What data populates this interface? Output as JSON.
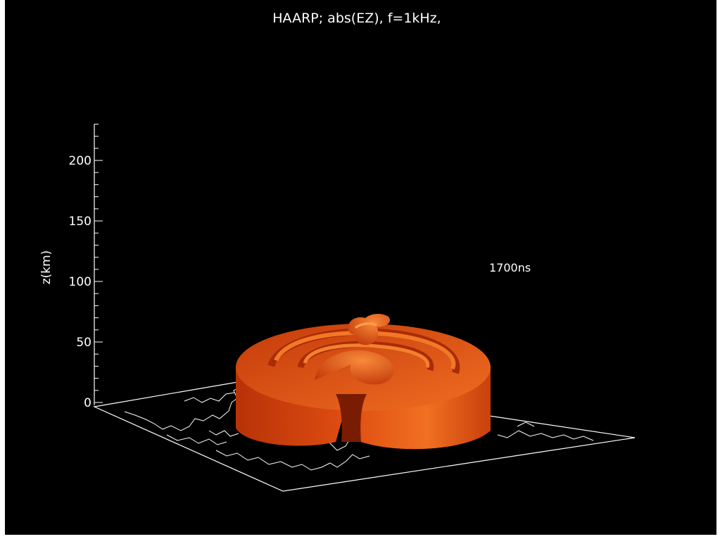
{
  "chart_data": {
    "type": "3d-isosurface",
    "title": "HAARP; abs(EZ), f=1kHz,",
    "zlabel": "z(km)",
    "zlim": [
      0,
      230
    ],
    "z_ticks": [
      0,
      50,
      100,
      150,
      200
    ],
    "z_tick_labels": [
      "0",
      "50",
      "100",
      "150",
      "200"
    ],
    "annotation": "1700ns",
    "surface_color": "#e0531b",
    "background": "#000000",
    "line_color": "#ffffff"
  }
}
